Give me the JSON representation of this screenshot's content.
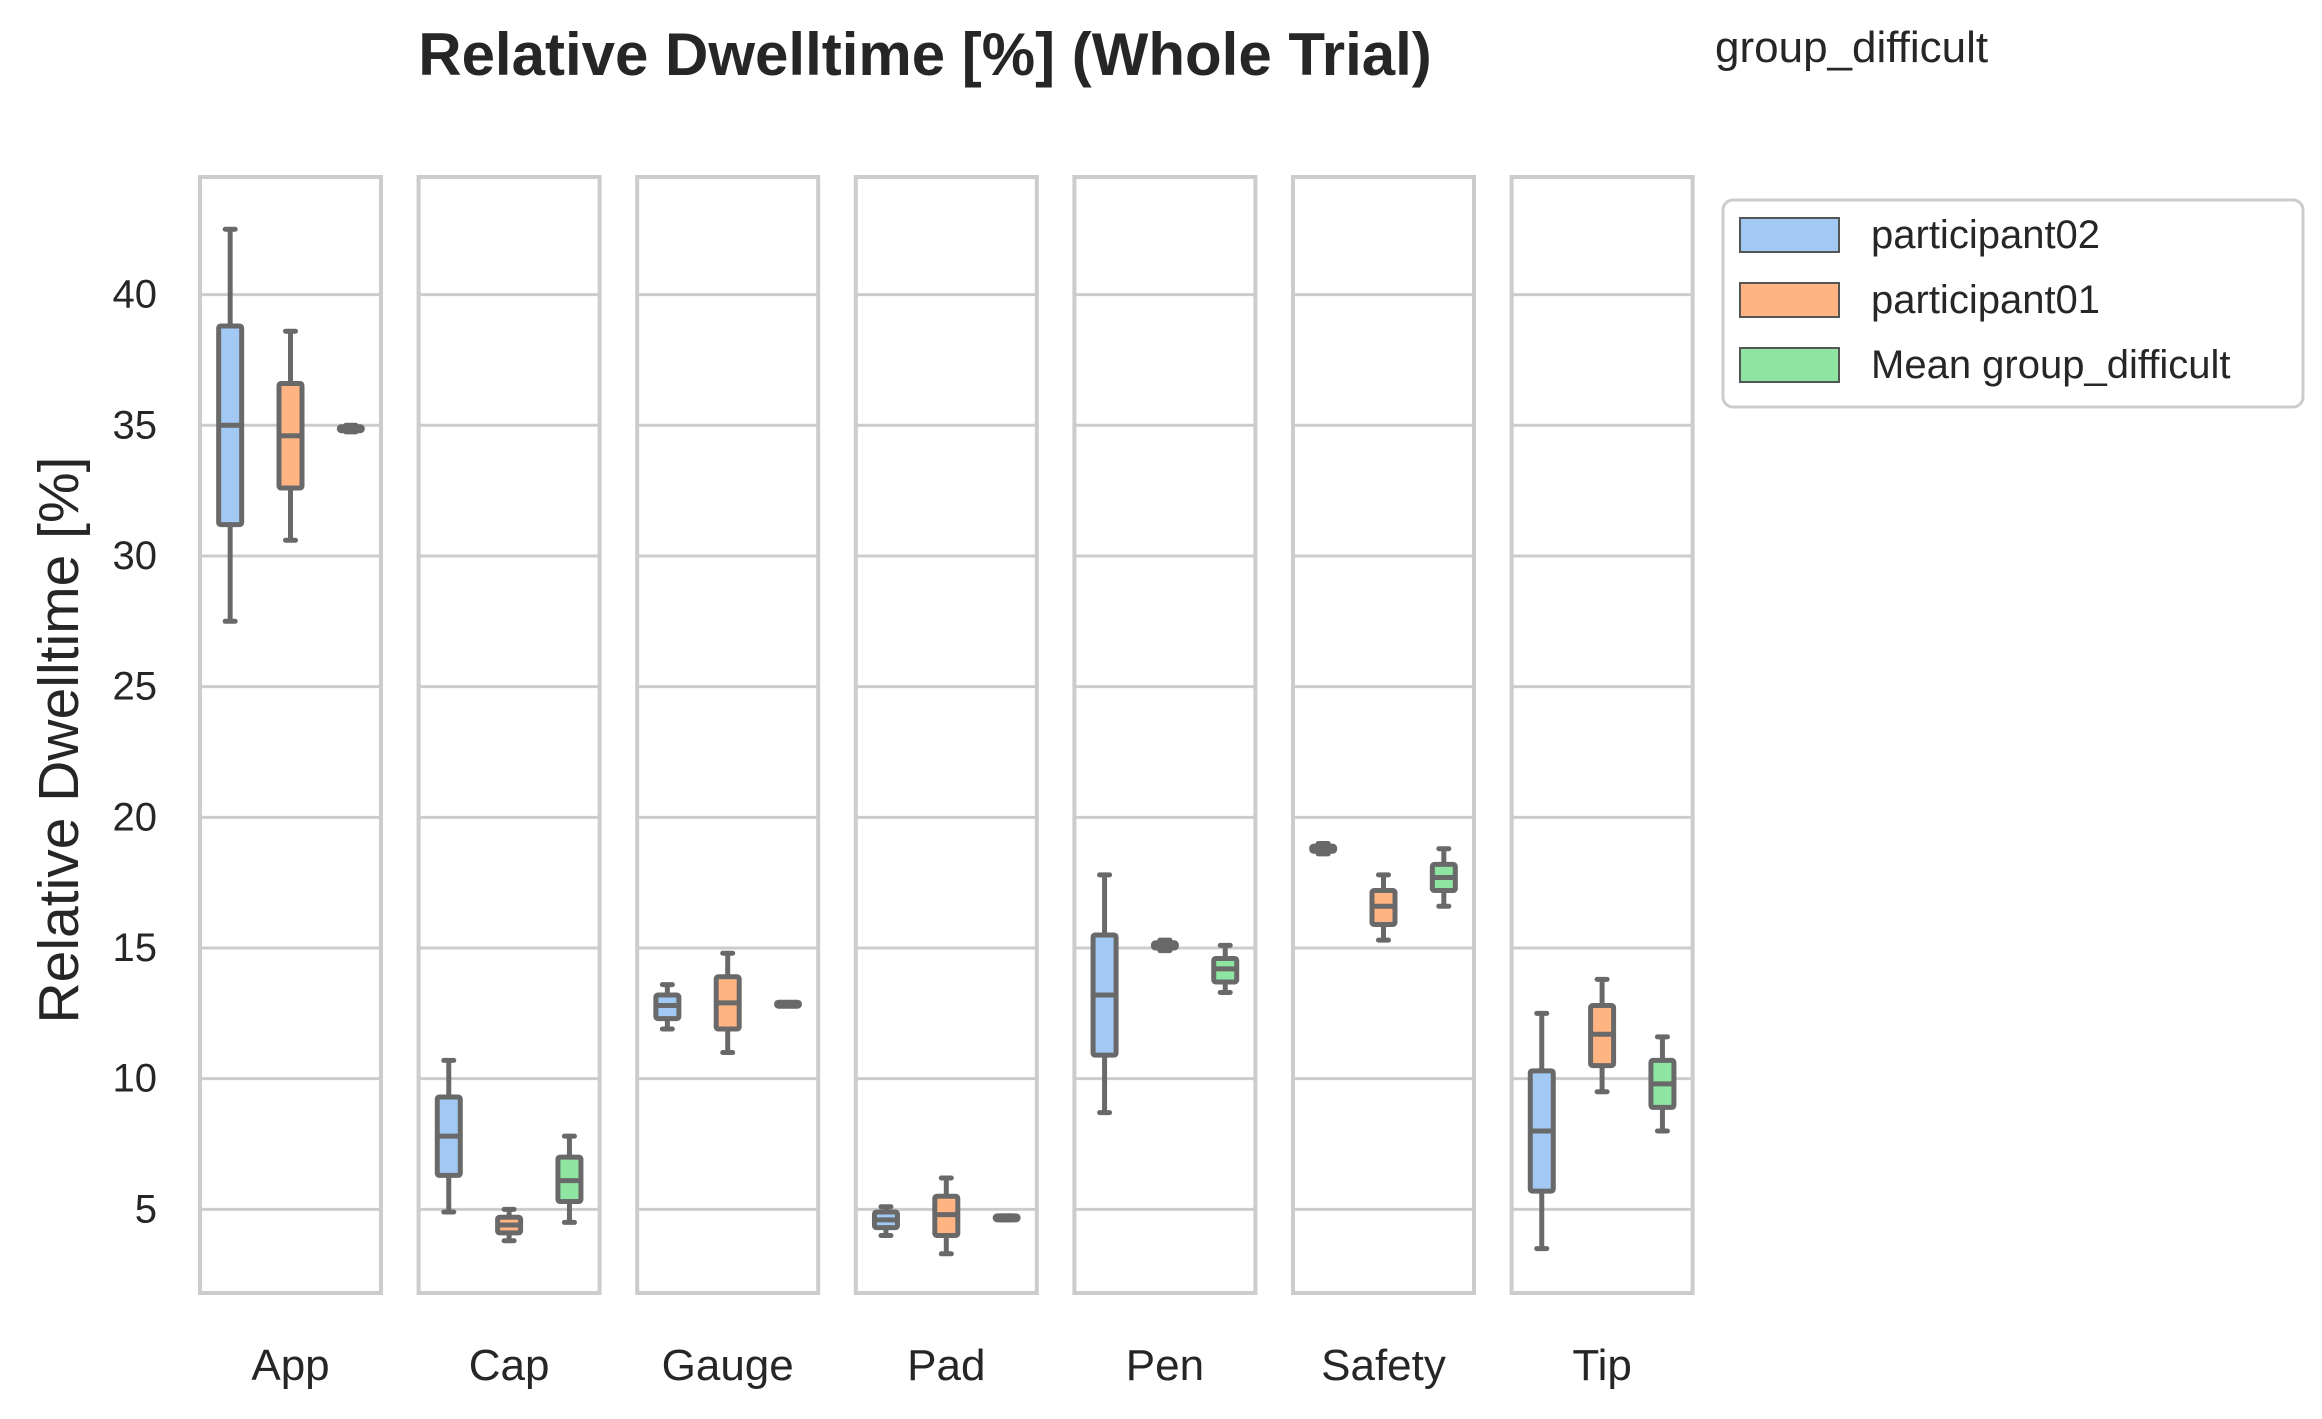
{
  "chart_data": {
    "type": "box",
    "title": "Relative Dwelltime [%] (Whole Trial)",
    "legend_title": "group_difficult",
    "legend_position": "outside-top-right",
    "ylabel": "Relative Dwelltime [%]",
    "xlabel": "",
    "ylim": [
      1.8,
      44.5
    ],
    "yticks": [
      5,
      10,
      15,
      20,
      25,
      30,
      35,
      40
    ],
    "grid": true,
    "panels": [
      "App",
      "Cap",
      "Gauge",
      "Pad",
      "Pen",
      "Safety",
      "Tip"
    ],
    "series": [
      {
        "name": "participant02",
        "color": "#a1c9f4",
        "boxes": [
          {
            "whisker_low": 27.5,
            "q1": 31.2,
            "median": 35.0,
            "q3": 38.8,
            "whisker_high": 42.5
          },
          {
            "whisker_low": 4.9,
            "q1": 6.3,
            "median": 7.8,
            "q3": 9.3,
            "whisker_high": 10.7
          },
          {
            "whisker_low": 11.9,
            "q1": 12.3,
            "median": 12.8,
            "q3": 13.2,
            "whisker_high": 13.6
          },
          {
            "whisker_low": 4.0,
            "q1": 4.3,
            "median": 4.6,
            "q3": 4.9,
            "whisker_high": 5.1
          },
          {
            "whisker_low": 8.7,
            "q1": 10.9,
            "median": 13.2,
            "q3": 15.5,
            "whisker_high": 17.8
          },
          {
            "whisker_low": 18.6,
            "q1": 18.7,
            "median": 18.8,
            "q3": 18.9,
            "whisker_high": 19.0
          },
          {
            "whisker_low": 3.5,
            "q1": 5.7,
            "median": 8.0,
            "q3": 10.3,
            "whisker_high": 12.5
          }
        ]
      },
      {
        "name": "participant01",
        "color": "#ffb482",
        "boxes": [
          {
            "whisker_low": 30.6,
            "q1": 32.6,
            "median": 34.6,
            "q3": 36.6,
            "whisker_high": 38.6
          },
          {
            "whisker_low": 3.8,
            "q1": 4.1,
            "median": 4.4,
            "q3": 4.7,
            "whisker_high": 5.0
          },
          {
            "whisker_low": 11.0,
            "q1": 11.9,
            "median": 12.9,
            "q3": 13.9,
            "whisker_high": 14.8
          },
          {
            "whisker_low": 3.3,
            "q1": 4.0,
            "median": 4.8,
            "q3": 5.5,
            "whisker_high": 6.2
          },
          {
            "whisker_low": 14.9,
            "q1": 15.0,
            "median": 15.1,
            "q3": 15.2,
            "whisker_high": 15.3
          },
          {
            "whisker_low": 15.3,
            "q1": 15.9,
            "median": 16.6,
            "q3": 17.2,
            "whisker_high": 17.8
          },
          {
            "whisker_low": 9.5,
            "q1": 10.5,
            "median": 11.7,
            "q3": 12.8,
            "whisker_high": 13.8
          }
        ]
      },
      {
        "name": "Mean group_difficult",
        "color": "#8de5a1",
        "boxes": [
          {
            "whisker_low": 34.75,
            "q1": 34.82,
            "median": 34.87,
            "q3": 34.92,
            "whisker_high": 35.0
          },
          {
            "whisker_low": 4.5,
            "q1": 5.3,
            "median": 6.1,
            "q3": 7.0,
            "whisker_high": 7.8
          },
          {
            "whisker_low": 12.8,
            "q1": 12.82,
            "median": 12.85,
            "q3": 12.88,
            "whisker_high": 12.9
          },
          {
            "whisker_low": 4.6,
            "q1": 4.63,
            "median": 4.67,
            "q3": 4.72,
            "whisker_high": 4.75
          },
          {
            "whisker_low": 13.3,
            "q1": 13.7,
            "median": 14.2,
            "q3": 14.6,
            "whisker_high": 15.1
          },
          {
            "whisker_low": 16.6,
            "q1": 17.2,
            "median": 17.7,
            "q3": 18.2,
            "whisker_high": 18.8
          },
          {
            "whisker_low": 8.0,
            "q1": 8.9,
            "median": 9.8,
            "q3": 10.7,
            "whisker_high": 11.6
          }
        ]
      }
    ]
  }
}
